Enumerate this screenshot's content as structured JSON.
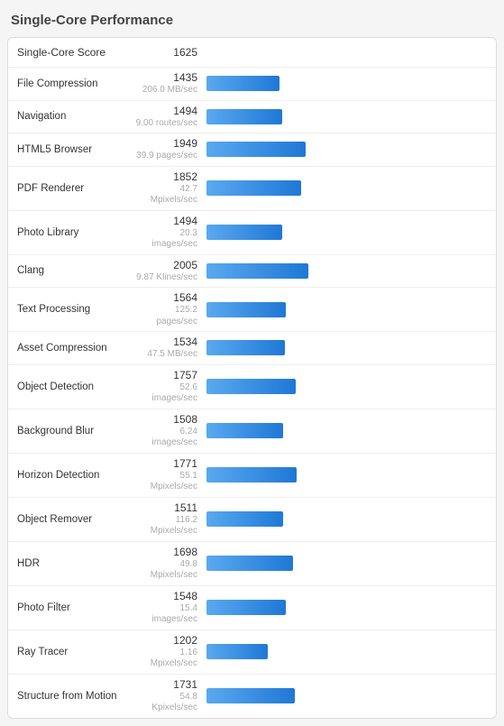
{
  "title": "Single-Core Performance",
  "header": {
    "label": "Single-Core Score",
    "score": "1625"
  },
  "bar": {
    "gradient_start": "#5aa9f0",
    "gradient_end": "#1f78d6",
    "max_scale": 5500
  },
  "rows": [
    {
      "name": "File Compression",
      "score": "1435",
      "sub": "206.0 MB/sec"
    },
    {
      "name": "Navigation",
      "score": "1494",
      "sub": "9.00 routes/sec"
    },
    {
      "name": "HTML5 Browser",
      "score": "1949",
      "sub": "39.9 pages/sec"
    },
    {
      "name": "PDF Renderer",
      "score": "1852",
      "sub": "42.7 Mpixels/sec"
    },
    {
      "name": "Photo Library",
      "score": "1494",
      "sub": "20.3 images/sec"
    },
    {
      "name": "Clang",
      "score": "2005",
      "sub": "9.87 Klines/sec"
    },
    {
      "name": "Text Processing",
      "score": "1564",
      "sub": "125.2 pages/sec"
    },
    {
      "name": "Asset Compression",
      "score": "1534",
      "sub": "47.5 MB/sec"
    },
    {
      "name": "Object Detection",
      "score": "1757",
      "sub": "52.6 images/sec"
    },
    {
      "name": "Background Blur",
      "score": "1508",
      "sub": "6.24 images/sec"
    },
    {
      "name": "Horizon Detection",
      "score": "1771",
      "sub": "55.1 Mpixels/sec"
    },
    {
      "name": "Object Remover",
      "score": "1511",
      "sub": "116.2 Mpixels/sec"
    },
    {
      "name": "HDR",
      "score": "1698",
      "sub": "49.8 Mpixels/sec"
    },
    {
      "name": "Photo Filter",
      "score": "1548",
      "sub": "15.4 images/sec"
    },
    {
      "name": "Ray Tracer",
      "score": "1202",
      "sub": "1.16 Mpixels/sec"
    },
    {
      "name": "Structure from Motion",
      "score": "1731",
      "sub": "54.8 Kpixels/sec"
    }
  ]
}
